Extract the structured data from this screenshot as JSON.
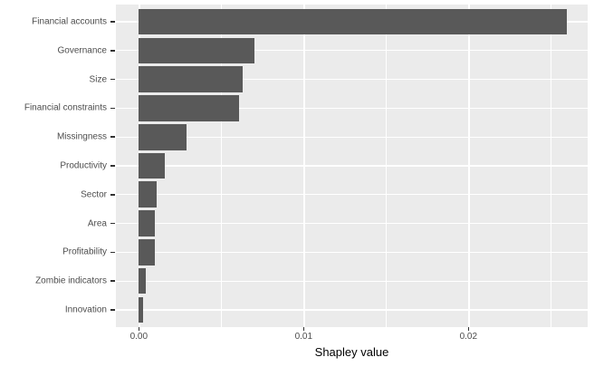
{
  "chart_data": {
    "type": "bar",
    "orientation": "horizontal",
    "title": "",
    "xlabel": "Shapley value",
    "ylabel": "",
    "categories": [
      "Financial accounts",
      "Governance",
      "Size",
      "Financial constraints",
      "Missingness",
      "Productivity",
      "Sector",
      "Area",
      "Profitability",
      "Zombie indicators",
      "Innovation"
    ],
    "values": [
      0.026,
      0.007,
      0.0063,
      0.0061,
      0.0029,
      0.0016,
      0.0011,
      0.00095,
      0.001,
      0.0004,
      0.00025
    ],
    "x_ticks": [
      {
        "value": 0.0,
        "label": "0.00"
      },
      {
        "value": 0.01,
        "label": "0.01"
      },
      {
        "value": 0.02,
        "label": "0.02"
      }
    ],
    "x_minor_ticks": [
      0.005,
      0.015,
      0.025
    ],
    "xlim": [
      -0.0014,
      0.0273
    ],
    "grid": "on",
    "legend": "none",
    "colors": {
      "bar_fill": "#595959",
      "panel_bg": "#EBEBEB",
      "grid_line": "#FFFFFF",
      "axis_text": "#4D4D4D",
      "axis_title": "#000000",
      "tick_mark": "#333333",
      "figure_bg": "#FFFFFF"
    }
  }
}
